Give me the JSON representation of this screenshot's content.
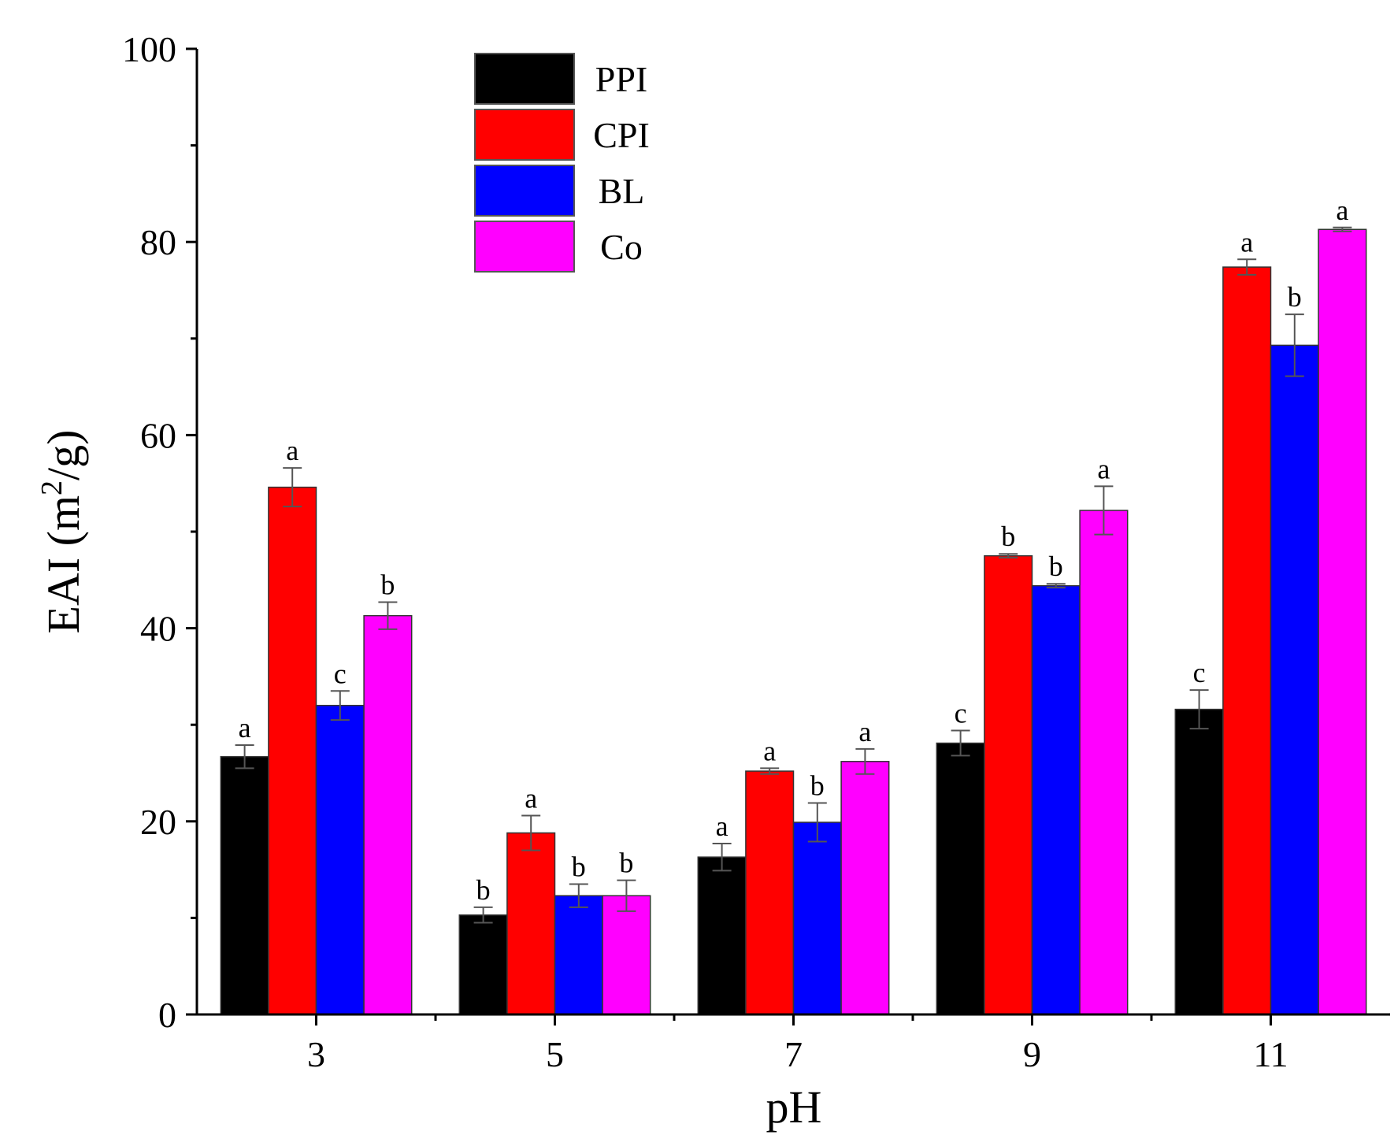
{
  "chart_data": {
    "type": "bar",
    "title": "",
    "xlabel": "pH",
    "ylabel": "EAI (m²/g)",
    "ylabel_parts": {
      "prefix": "EAI (m",
      "sup": "2",
      "suffix": "/g)"
    },
    "ylim": [
      0,
      100
    ],
    "yticks": [
      0,
      20,
      40,
      60,
      80,
      100
    ],
    "categories": [
      "3",
      "5",
      "7",
      "9",
      "11"
    ],
    "legend_position": "top-left-center",
    "series": [
      {
        "name": "PPI",
        "color": "#000000",
        "values": [
          26.7,
          10.3,
          16.3,
          28.1,
          31.6
        ],
        "errors": [
          1.2,
          0.8,
          1.4,
          1.3,
          2.0
        ],
        "labels": [
          "a",
          "b",
          "a",
          "c",
          "c"
        ]
      },
      {
        "name": "CPI",
        "color": "#ff0000",
        "values": [
          54.6,
          18.8,
          25.2,
          47.5,
          77.4
        ],
        "errors": [
          2.0,
          1.8,
          0.3,
          0.2,
          0.8
        ],
        "labels": [
          "a",
          "a",
          "a",
          "b",
          "a"
        ]
      },
      {
        "name": "BL",
        "color": "#0000ff",
        "values": [
          32.0,
          12.3,
          19.9,
          44.4,
          69.3
        ],
        "errors": [
          1.5,
          1.2,
          2.0,
          0.2,
          3.2
        ],
        "labels": [
          "c",
          "b",
          "b",
          "b",
          "b"
        ]
      },
      {
        "name": "Co",
        "color": "#ff00ff",
        "values": [
          41.3,
          12.3,
          26.2,
          52.2,
          81.3
        ],
        "errors": [
          1.4,
          1.6,
          1.3,
          2.5,
          0.2
        ],
        "labels": [
          "b",
          "b",
          "a",
          "a",
          "a"
        ]
      }
    ]
  }
}
